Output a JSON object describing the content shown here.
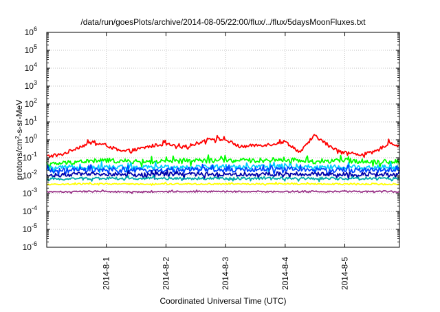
{
  "chart_data": {
    "type": "line",
    "title": "/data/run/goesPlots/archive/2014-08-05/22:00/flux/../flux/5daysMoonFluxes.txt",
    "xlabel": "Coordinated Universal Time (UTC)",
    "ylabel": {
      "prefix": "protons/cm",
      "sup": "2",
      "suffix": "-s-sr-MeV"
    },
    "y_scale": "log",
    "ylim_exp": [
      -6,
      6
    ],
    "y_ticks": [
      {
        "base": "10",
        "exp": "6"
      },
      {
        "base": "10",
        "exp": "5"
      },
      {
        "base": "10",
        "exp": "4"
      },
      {
        "base": "10",
        "exp": "3"
      },
      {
        "base": "10",
        "exp": "2"
      },
      {
        "base": "10",
        "exp": "1"
      },
      {
        "base": "10",
        "exp": "0"
      },
      {
        "base": "10",
        "exp": "-1"
      },
      {
        "base": "10",
        "exp": "-2"
      },
      {
        "base": "10",
        "exp": "-3"
      },
      {
        "base": "10",
        "exp": "-4"
      },
      {
        "base": "10",
        "exp": "-5"
      },
      {
        "base": "10",
        "exp": "-6"
      }
    ],
    "x_range": [
      "2014-07-31 00:00",
      "2014-08-05 22:00"
    ],
    "x_ticks": [
      "2014-8-1",
      "2014-8-2",
      "2014-8-3",
      "2014-8-4",
      "2014-8-5"
    ],
    "grid": true,
    "series": [
      {
        "color": "#ff0000",
        "x": [
          "2014-07-31 00:00",
          "2014-07-31 06:00",
          "2014-07-31 12:00",
          "2014-07-31 18:00",
          "2014-08-01 00:00",
          "2014-08-01 06:00",
          "2014-08-01 12:00",
          "2014-08-01 18:00",
          "2014-08-02 00:00",
          "2014-08-02 06:00",
          "2014-08-02 12:00",
          "2014-08-02 18:00",
          "2014-08-03 00:00",
          "2014-08-03 06:00",
          "2014-08-03 12:00",
          "2014-08-03 18:00",
          "2014-08-04 00:00",
          "2014-08-04 06:00",
          "2014-08-04 12:00",
          "2014-08-04 18:00",
          "2014-08-05 00:00",
          "2014-08-05 06:00",
          "2014-08-05 12:00",
          "2014-08-05 18:00",
          "2014-08-05 22:00"
        ],
        "values": [
          0.12,
          0.15,
          0.35,
          0.7,
          0.5,
          0.22,
          0.28,
          0.45,
          0.6,
          0.35,
          0.6,
          1.2,
          1.0,
          0.4,
          0.5,
          0.55,
          0.8,
          0.2,
          1.8,
          0.4,
          0.2,
          0.15,
          0.2,
          0.7,
          0.45
        ]
      },
      {
        "color": "#00ff00",
        "x": [
          "2014-07-31 00:00",
          "2014-07-31 12:00",
          "2014-08-01 00:00",
          "2014-08-01 12:00",
          "2014-08-02 00:00",
          "2014-08-02 12:00",
          "2014-08-03 00:00",
          "2014-08-03 12:00",
          "2014-08-04 00:00",
          "2014-08-04 12:00",
          "2014-08-05 00:00",
          "2014-08-05 12:00",
          "2014-08-05 22:00"
        ],
        "values": [
          0.04,
          0.06,
          0.07,
          0.06,
          0.06,
          0.07,
          0.07,
          0.07,
          0.08,
          0.06,
          0.07,
          0.06,
          0.06
        ]
      },
      {
        "color": "#00ccff",
        "x": [
          "2014-07-31 00:00",
          "2014-07-31 12:00",
          "2014-08-01 00:00",
          "2014-08-01 12:00",
          "2014-08-02 00:00",
          "2014-08-02 12:00",
          "2014-08-03 00:00",
          "2014-08-03 12:00",
          "2014-08-04 00:00",
          "2014-08-04 12:00",
          "2014-08-05 00:00",
          "2014-08-05 12:00",
          "2014-08-05 22:00"
        ],
        "values": [
          0.025,
          0.03,
          0.03,
          0.028,
          0.03,
          0.03,
          0.032,
          0.03,
          0.035,
          0.03,
          0.03,
          0.03,
          0.03
        ]
      },
      {
        "color": "#0044ff",
        "x": [
          "2014-07-31 00:00",
          "2014-07-31 12:00",
          "2014-08-01 00:00",
          "2014-08-01 12:00",
          "2014-08-02 00:00",
          "2014-08-02 12:00",
          "2014-08-03 00:00",
          "2014-08-03 12:00",
          "2014-08-04 00:00",
          "2014-08-04 12:00",
          "2014-08-05 00:00",
          "2014-08-05 12:00",
          "2014-08-05 22:00"
        ],
        "values": [
          0.018,
          0.02,
          0.02,
          0.02,
          0.02,
          0.022,
          0.02,
          0.022,
          0.025,
          0.02,
          0.02,
          0.02,
          0.02
        ]
      },
      {
        "color": "#0000aa",
        "x": [
          "2014-07-31 00:00",
          "2014-07-31 12:00",
          "2014-08-01 00:00",
          "2014-08-01 12:00",
          "2014-08-02 00:00",
          "2014-08-02 12:00",
          "2014-08-03 00:00",
          "2014-08-03 12:00",
          "2014-08-04 00:00",
          "2014-08-04 12:00",
          "2014-08-05 00:00",
          "2014-08-05 12:00",
          "2014-08-05 22:00"
        ],
        "values": [
          0.01,
          0.012,
          0.012,
          0.011,
          0.012,
          0.012,
          0.012,
          0.012,
          0.013,
          0.012,
          0.012,
          0.012,
          0.012
        ]
      },
      {
        "color": "#00aaaa",
        "x": [
          "2014-07-31 00:00",
          "2014-07-31 12:00",
          "2014-08-01 00:00",
          "2014-08-01 12:00",
          "2014-08-02 00:00",
          "2014-08-02 12:00",
          "2014-08-03 00:00",
          "2014-08-03 12:00",
          "2014-08-04 00:00",
          "2014-08-04 12:00",
          "2014-08-05 00:00",
          "2014-08-05 12:00",
          "2014-08-05 22:00"
        ],
        "values": [
          0.006,
          0.007,
          0.007,
          0.007,
          0.007,
          0.007,
          0.007,
          0.007,
          0.007,
          0.007,
          0.007,
          0.007,
          0.007
        ]
      },
      {
        "color": "#ffff00",
        "x": [
          "2014-07-31 00:00",
          "2014-07-31 12:00",
          "2014-08-01 00:00",
          "2014-08-01 12:00",
          "2014-08-02 00:00",
          "2014-08-02 12:00",
          "2014-08-03 00:00",
          "2014-08-03 12:00",
          "2014-08-04 00:00",
          "2014-08-04 12:00",
          "2014-08-05 00:00",
          "2014-08-05 12:00",
          "2014-08-05 22:00"
        ],
        "values": [
          0.0032,
          0.0034,
          0.0034,
          0.0033,
          0.0034,
          0.0034,
          0.0034,
          0.0034,
          0.0035,
          0.0034,
          0.0034,
          0.0034,
          0.0034
        ]
      },
      {
        "color": "#993388",
        "x": [
          "2014-07-31 00:00",
          "2014-07-31 12:00",
          "2014-08-01 00:00",
          "2014-08-01 12:00",
          "2014-08-02 00:00",
          "2014-08-02 12:00",
          "2014-08-03 00:00",
          "2014-08-03 12:00",
          "2014-08-04 00:00",
          "2014-08-04 12:00",
          "2014-08-05 00:00",
          "2014-08-05 12:00",
          "2014-08-05 22:00"
        ],
        "values": [
          0.0012,
          0.0013,
          0.0013,
          0.0012,
          0.0013,
          0.0013,
          0.0013,
          0.0013,
          0.0013,
          0.0013,
          0.0013,
          0.0013,
          0.0013
        ]
      }
    ]
  }
}
